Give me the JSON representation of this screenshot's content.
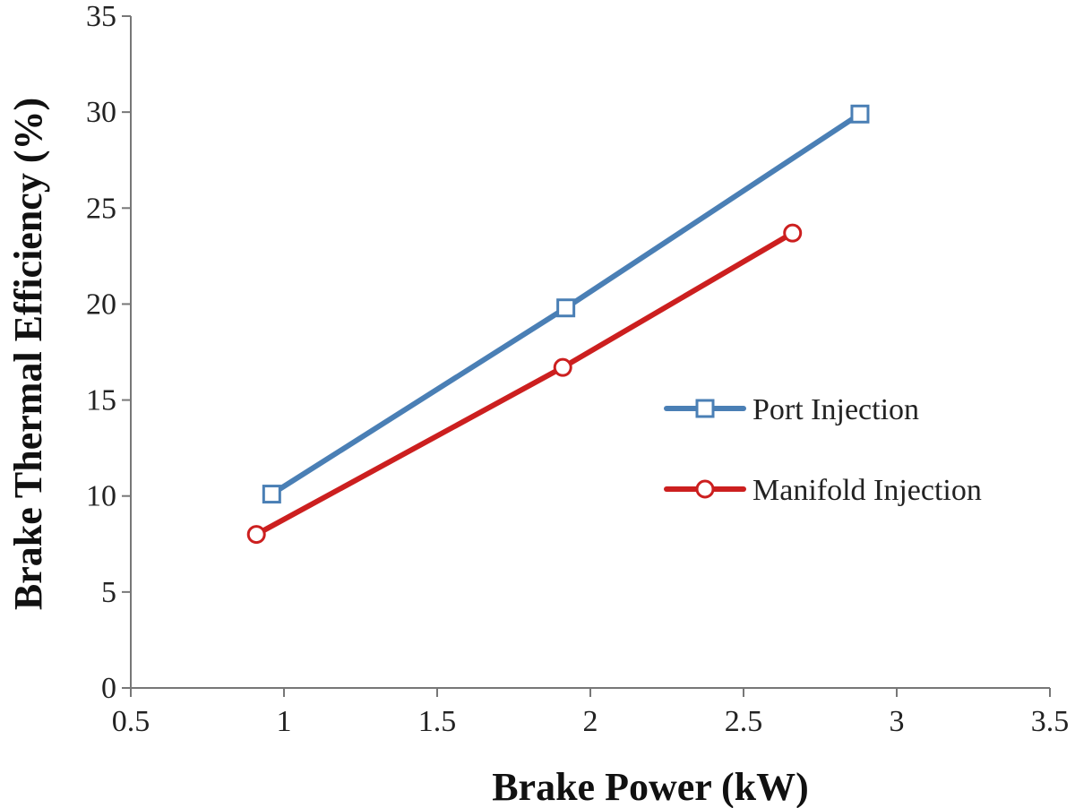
{
  "chart_data": {
    "type": "line",
    "title": "",
    "xlabel": "Brake Power (kW)",
    "ylabel": "Brake Thermal Efficiency (%)",
    "xlim": [
      0.5,
      3.5
    ],
    "ylim": [
      0,
      35
    ],
    "xticks": [
      0.5,
      1,
      1.5,
      2,
      2.5,
      3,
      3.5
    ],
    "yticks": [
      0,
      5,
      10,
      15,
      20,
      25,
      30,
      35
    ],
    "xtick_labels": [
      "0.5",
      "1",
      "1.5",
      "2",
      "2.5",
      "3",
      "3.5"
    ],
    "ytick_labels": [
      "0",
      "5",
      "10",
      "15",
      "20",
      "25",
      "30",
      "35"
    ],
    "grid": false,
    "legend_position": "right",
    "series": [
      {
        "name": "Port Injection",
        "color": "#4a7fb5",
        "marker": "square",
        "x": [
          0.96,
          1.92,
          2.88
        ],
        "y": [
          10.1,
          19.8,
          29.9
        ]
      },
      {
        "name": "Manifold Injection",
        "color": "#cc1f1f",
        "marker": "circle",
        "x": [
          0.91,
          1.91,
          2.66
        ],
        "y": [
          8.0,
          16.7,
          23.7
        ]
      }
    ]
  }
}
